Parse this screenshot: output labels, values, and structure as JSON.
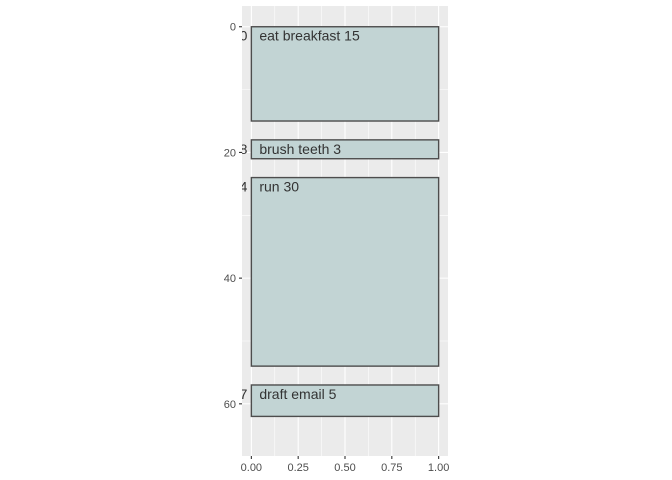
{
  "chart_data": {
    "type": "bar",
    "orientation": "stacked-rectangles",
    "y_reversed": true,
    "xlim": [
      -0.05,
      1.05
    ],
    "ylim": [
      -3.3,
      68.3
    ],
    "x_ticks": [
      0,
      0.25,
      0.5,
      0.75,
      1
    ],
    "x_tick_labels": [
      "0.00",
      "0.25",
      "0.50",
      "0.75",
      "1.00"
    ],
    "y_ticks": [
      0,
      20,
      40,
      60
    ],
    "y_tick_labels": [
      "0",
      "20",
      "40",
      "60"
    ],
    "grid": true,
    "panel_color": "#ebebeb",
    "fill_color": "#c2d4d4",
    "border_color": "#4d4d4d",
    "tasks": [
      {
        "start": 0,
        "duration": 15,
        "start_label": "0",
        "label": "eat breakfast 15"
      },
      {
        "start": 18,
        "duration": 3,
        "start_label": "18",
        "label": "brush teeth 3"
      },
      {
        "start": 24,
        "duration": 30,
        "start_label": "24",
        "label": "run 30"
      },
      {
        "start": 57,
        "duration": 5,
        "start_label": "57",
        "label": "draft email 5"
      }
    ]
  }
}
